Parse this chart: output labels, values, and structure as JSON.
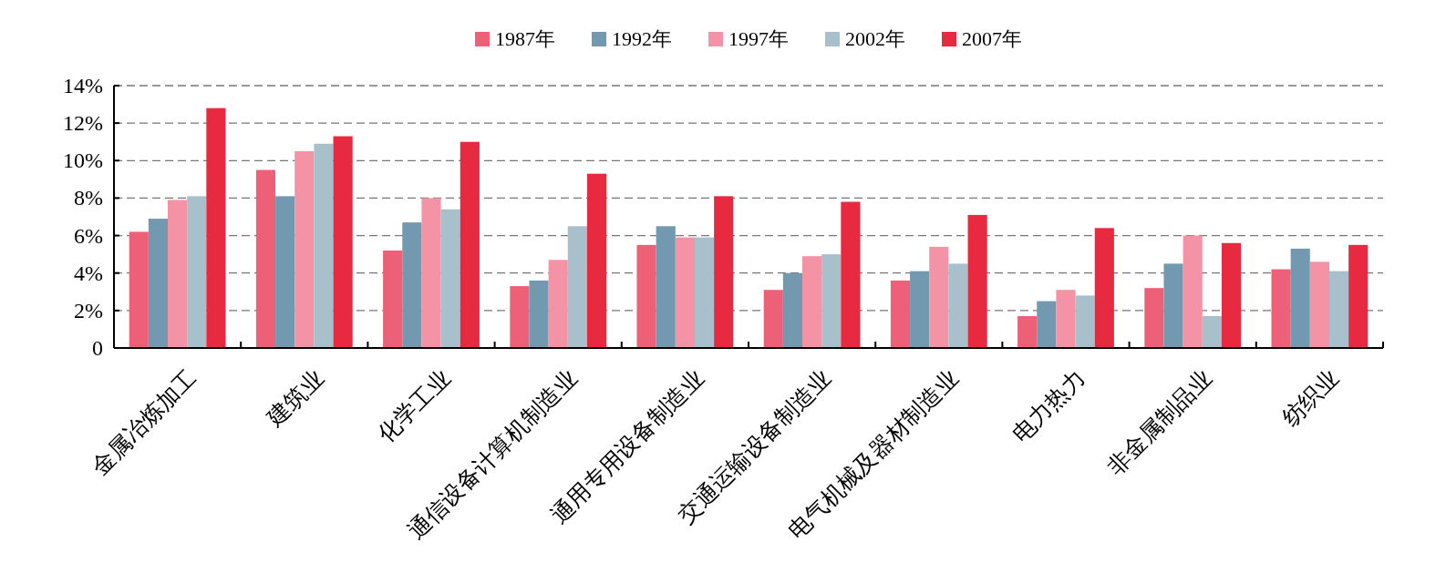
{
  "chart_data": {
    "type": "bar",
    "categories": [
      "金属冶炼加工",
      "建筑业",
      "化学工业",
      "通信设备计算机制造业",
      "通用专用设备制造业",
      "交通运输设备制造业",
      "电气机械及器材制造业",
      "电力热力",
      "非金属制品业",
      "纺织业"
    ],
    "series": [
      {
        "name": "1987年",
        "color": "#ee5f78",
        "values": [
          6.2,
          9.5,
          5.2,
          3.3,
          5.5,
          3.1,
          3.6,
          1.7,
          3.2,
          4.2
        ]
      },
      {
        "name": "1992年",
        "color": "#7399b0",
        "values": [
          6.9,
          8.1,
          6.7,
          3.6,
          6.5,
          4.0,
          4.1,
          2.5,
          4.5,
          5.3
        ]
      },
      {
        "name": "1997年",
        "color": "#f393a5",
        "values": [
          7.9,
          10.5,
          8.0,
          4.7,
          5.9,
          4.9,
          5.4,
          3.1,
          6.0,
          4.6
        ]
      },
      {
        "name": "2002年",
        "color": "#a7c0cb",
        "values": [
          8.1,
          10.9,
          7.4,
          6.5,
          5.9,
          5.0,
          4.5,
          2.8,
          1.7,
          4.1
        ]
      },
      {
        "name": "2007年",
        "color": "#e82a40",
        "values": [
          12.8,
          11.3,
          11.0,
          9.3,
          8.1,
          7.8,
          7.1,
          6.4,
          5.6,
          5.5
        ]
      }
    ],
    "ylim": [
      0,
      14
    ],
    "yticks": [
      {
        "value": 0,
        "label": "0"
      },
      {
        "value": 2,
        "label": "2%"
      },
      {
        "value": 4,
        "label": "4%"
      },
      {
        "value": 6,
        "label": "6%"
      },
      {
        "value": 8,
        "label": "8%"
      },
      {
        "value": 10,
        "label": "10%"
      },
      {
        "value": 12,
        "label": "12%"
      },
      {
        "value": 14,
        "label": "14%"
      }
    ],
    "grid": "y",
    "legend": "top"
  }
}
